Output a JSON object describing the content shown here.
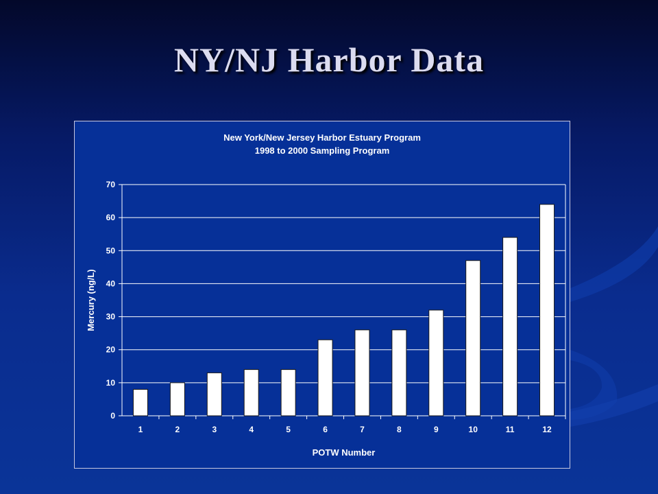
{
  "slide": {
    "title": "NY/NJ Harbor Data"
  },
  "colors": {
    "background": "#0a2c8e",
    "plot_area": "#063098",
    "bars": "#ffffff",
    "text": "#ffffff",
    "title": "#dcdcf0"
  },
  "chart_data": {
    "type": "bar",
    "title": "New York/New Jersey Harbor Estuary Program",
    "subtitle": "1998 to 2000 Sampling Program",
    "xlabel": "POTW Number",
    "ylabel": "Mercury (ng/L)",
    "categories": [
      "1",
      "2",
      "3",
      "4",
      "5",
      "6",
      "7",
      "8",
      "9",
      "10",
      "11",
      "12"
    ],
    "values": [
      8,
      10,
      13,
      14,
      14,
      23,
      26,
      26,
      32,
      47,
      54,
      64
    ],
    "ylim": [
      0,
      70
    ],
    "yticks": [
      0,
      10,
      20,
      30,
      40,
      50,
      60,
      70
    ],
    "grid": true,
    "legend": "none"
  }
}
